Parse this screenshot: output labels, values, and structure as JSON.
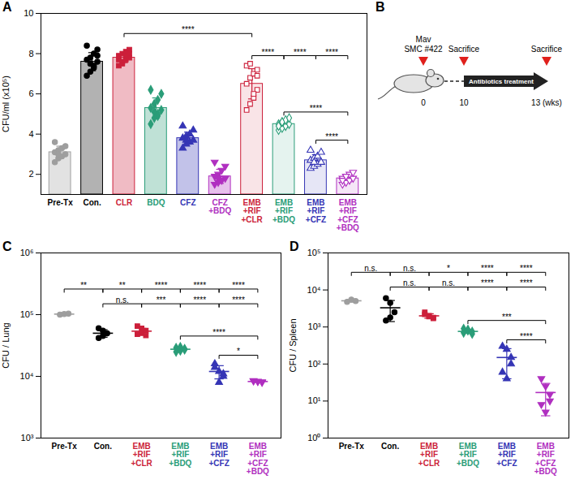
{
  "chart_data": [
    {
      "panel": "A",
      "type": "bar",
      "ylabel": "CFU/ml (x10⁵)",
      "ylim": [
        1,
        10
      ],
      "yticks": [
        2,
        4,
        6,
        8,
        10
      ],
      "series": [
        {
          "name": "Pre-Tx",
          "color": "#9e9e9e",
          "marker": "circle",
          "mean": 3.1,
          "error": 0.3,
          "values": [
            2.6,
            2.8,
            2.9,
            3.0,
            3.1,
            3.2,
            3.3,
            3.4,
            3.6,
            3.0
          ]
        },
        {
          "name": "Con.",
          "color": "#000000",
          "marker": "circle",
          "mean": 7.6,
          "error": 0.45,
          "values": [
            6.9,
            7.1,
            7.4,
            7.6,
            7.7,
            7.8,
            8.0,
            8.2,
            8.4,
            7.5,
            7.3,
            7.9
          ]
        },
        {
          "name": "CLR",
          "color": "#cc1f3a",
          "marker": "square",
          "mean": 7.8,
          "error": 0.25,
          "values": [
            7.4,
            7.6,
            7.7,
            7.8,
            7.9,
            8.0,
            8.1,
            8.2,
            7.7,
            7.5,
            7.9,
            8.0
          ]
        },
        {
          "name": "BDQ",
          "color": "#2a9d78",
          "marker": "diamond",
          "mean": 5.3,
          "error": 0.5,
          "values": [
            4.5,
            4.8,
            5.0,
            5.2,
            5.3,
            5.5,
            5.7,
            6.0,
            6.2,
            5.1,
            4.9
          ]
        },
        {
          "name": "CFZ",
          "color": "#3535b5",
          "marker": "triangle",
          "mean": 3.8,
          "error": 0.3,
          "values": [
            3.3,
            3.5,
            3.6,
            3.7,
            3.8,
            3.9,
            4.0,
            4.2,
            4.4,
            3.7
          ]
        },
        {
          "name": "CFZ +BDQ",
          "color": "#b02fc0",
          "marker": "triangle-down",
          "mean": 1.9,
          "error": 0.35,
          "values": [
            1.5,
            1.6,
            1.7,
            1.8,
            1.9,
            2.0,
            2.2,
            2.4,
            2.6,
            1.8
          ]
        },
        {
          "name": "EMB +RIF +CLR",
          "color": "#cc1f3a",
          "marker": "square-open",
          "mean": 6.5,
          "error": 0.75,
          "values": [
            5.2,
            5.5,
            5.8,
            6.2,
            6.5,
            6.8,
            7.0,
            7.2,
            7.4,
            7.5,
            6.0,
            6.9
          ]
        },
        {
          "name": "EMB +RIF +BDQ",
          "color": "#2a9d78",
          "marker": "diamond-open",
          "mean": 4.5,
          "error": 0.18,
          "values": [
            4.2,
            4.3,
            4.4,
            4.5,
            4.5,
            4.6,
            4.7,
            4.8,
            4.4,
            4.6
          ]
        },
        {
          "name": "EMB +RIF +CFZ",
          "color": "#3535b5",
          "marker": "triangle-open",
          "mean": 2.7,
          "error": 0.28,
          "values": [
            2.3,
            2.4,
            2.5,
            2.6,
            2.7,
            2.8,
            2.9,
            3.1,
            3.2,
            2.6
          ]
        },
        {
          "name": "EMB +RIF +CFZ +BDQ",
          "color": "#b02fc0",
          "marker": "triangle-down-open",
          "mean": 1.8,
          "error": 0.18,
          "values": [
            1.5,
            1.6,
            1.7,
            1.8,
            1.8,
            1.9,
            2.0,
            2.1,
            1.7,
            1.9
          ]
        }
      ],
      "comparisons": [
        {
          "from": 2,
          "to": 6,
          "y": 9.0,
          "label": "****"
        },
        {
          "from": 6,
          "to": 7,
          "y": 7.9,
          "label": "****"
        },
        {
          "from": 7,
          "to": 8,
          "y": 7.9,
          "label": "****"
        },
        {
          "from": 8,
          "to": 9,
          "y": 7.9,
          "label": "****"
        },
        {
          "from": 7,
          "to": 9,
          "y": 5.1,
          "label": "****"
        },
        {
          "from": 8,
          "to": 9,
          "y": 3.7,
          "label": "****"
        }
      ]
    },
    {
      "panel": "C",
      "type": "scatter",
      "log": "y",
      "ylabel": "CFU / Lung",
      "ylim": [
        1000,
        1000000
      ],
      "yticks": [
        {
          "value": 1000,
          "label": "10³"
        },
        {
          "value": 10000,
          "label": "10⁴"
        },
        {
          "value": 100000,
          "label": "10⁵"
        },
        {
          "value": 1000000,
          "label": "10⁶"
        }
      ],
      "series": [
        {
          "name": "Pre-Tx",
          "color": "#9e9e9e",
          "marker": "circle",
          "mean": 102000,
          "error": 2000,
          "values": [
            100000,
            102000,
            104000
          ]
        },
        {
          "name": "Con.",
          "color": "#000000",
          "marker": "circle",
          "mean": 50000,
          "error": 7000,
          "values": [
            60000,
            45000,
            50000,
            42000,
            55000
          ]
        },
        {
          "name": "EMB +RIF +CLR",
          "color": "#cc1f3a",
          "marker": "square",
          "mean": 54000,
          "error": 6000,
          "values": [
            65000,
            50000,
            55000,
            48000,
            60000,
            46000
          ]
        },
        {
          "name": "EMB +RIF +BDQ",
          "color": "#2a9d78",
          "marker": "diamond",
          "mean": 27500,
          "error": 1900,
          "values": [
            29000,
            26000,
            28000,
            25000,
            30000,
            27000
          ]
        },
        {
          "name": "EMB +RIF +CFZ",
          "color": "#3535b5",
          "marker": "triangle",
          "mean": 12000,
          "error": 2900,
          "values": [
            16000,
            12000,
            10000,
            14000,
            8000,
            11000
          ]
        },
        {
          "name": "EMB +RIF +CFZ +BDQ",
          "color": "#b02fc0",
          "marker": "triangle-down",
          "mean": 8250,
          "error": 190,
          "values": [
            8500,
            8200,
            8000,
            8400,
            8300,
            8100
          ]
        }
      ],
      "comparisons": [
        {
          "from": 0,
          "to": 1,
          "y": 260000,
          "label": "**"
        },
        {
          "from": 1,
          "to": 2,
          "y": 260000,
          "label": "**"
        },
        {
          "from": 2,
          "to": 3,
          "y": 260000,
          "label": "****"
        },
        {
          "from": 3,
          "to": 4,
          "y": 260000,
          "label": "****"
        },
        {
          "from": 4,
          "to": 5,
          "y": 260000,
          "label": "****"
        },
        {
          "from": 1,
          "to": 2,
          "y": 150000,
          "label": "n.s."
        },
        {
          "from": 2,
          "to": 3,
          "y": 150000,
          "label": "***"
        },
        {
          "from": 3,
          "to": 4,
          "y": 150000,
          "label": "****"
        },
        {
          "from": 4,
          "to": 5,
          "y": 150000,
          "label": "****"
        },
        {
          "from": 3,
          "to": 5,
          "y": 45000,
          "label": "****"
        },
        {
          "from": 4,
          "to": 5,
          "y": 22000,
          "label": "*"
        }
      ]
    },
    {
      "panel": "D",
      "type": "scatter",
      "log": "y",
      "ylabel": "CFU / Spleen",
      "ylim": [
        1,
        100000
      ],
      "yticks": [
        {
          "value": 1,
          "label": "10⁰"
        },
        {
          "value": 10,
          "label": "10¹"
        },
        {
          "value": 100,
          "label": "10²"
        },
        {
          "value": 1000,
          "label": "10³"
        },
        {
          "value": 10000,
          "label": "10⁴"
        },
        {
          "value": 100000,
          "label": "10⁵"
        }
      ],
      "series": [
        {
          "name": "Pre-Tx",
          "color": "#9e9e9e",
          "marker": "circle",
          "mean": 5100,
          "error": 400,
          "values": [
            4800,
            5500,
            5000
          ]
        },
        {
          "name": "Con.",
          "color": "#000000",
          "marker": "circle",
          "mean": 3300,
          "error": 1900,
          "values": [
            6000,
            4500,
            2500,
            1500,
            1800
          ]
        },
        {
          "name": "EMB +RIF +CLR",
          "color": "#cc1f3a",
          "marker": "square",
          "mean": 2000,
          "error": 280,
          "values": [
            2500,
            2000,
            1800,
            2200,
            1900,
            1700
          ]
        },
        {
          "name": "EMB +RIF +BDQ",
          "color": "#2a9d78",
          "marker": "diamond",
          "mean": 760,
          "error": 90,
          "values": [
            900,
            800,
            750,
            700,
            850,
            650
          ]
        },
        {
          "name": "EMB +RIF +CFZ",
          "color": "#3535b5",
          "marker": "triangle",
          "mean": 150,
          "error": 110,
          "values": [
            300,
            250,
            150,
            60,
            40,
            100
          ]
        },
        {
          "name": "EMB +RIF +CFZ +BDQ",
          "color": "#b02fc0",
          "marker": "triangle-down",
          "mean": 17,
          "error": 13,
          "values": [
            40,
            25,
            15,
            8,
            5,
            10
          ]
        }
      ],
      "comparisons": [
        {
          "from": 0,
          "to": 1,
          "y": 30000,
          "label": "n.s."
        },
        {
          "from": 1,
          "to": 2,
          "y": 30000,
          "label": "n.s."
        },
        {
          "from": 2,
          "to": 3,
          "y": 30000,
          "label": "*"
        },
        {
          "from": 3,
          "to": 4,
          "y": 30000,
          "label": "****"
        },
        {
          "from": 4,
          "to": 5,
          "y": 30000,
          "label": "****"
        },
        {
          "from": 1,
          "to": 2,
          "y": 12000,
          "label": "n.s."
        },
        {
          "from": 2,
          "to": 3,
          "y": 12000,
          "label": "n.s."
        },
        {
          "from": 3,
          "to": 4,
          "y": 12000,
          "label": "****"
        },
        {
          "from": 4,
          "to": 5,
          "y": 12000,
          "label": "****"
        },
        {
          "from": 3,
          "to": 5,
          "y": 1500,
          "label": "***"
        },
        {
          "from": 4,
          "to": 5,
          "y": 450,
          "label": "****"
        }
      ]
    }
  ],
  "diagram": {
    "panel": "B",
    "events": [
      {
        "tick": "0",
        "label": [
          "Mav",
          "SMC #422"
        ]
      },
      {
        "tick": "10",
        "label": [
          "Sacrifice"
        ]
      },
      {
        "tick": "13 (wks)",
        "label": [
          "Sacrifice"
        ]
      }
    ],
    "treatment": "Antibiotics treatment"
  }
}
